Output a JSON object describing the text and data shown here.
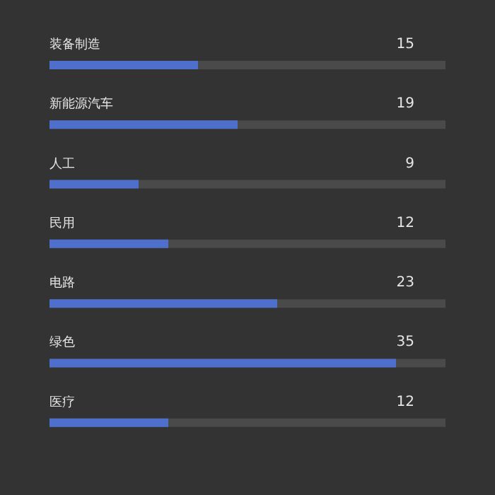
{
  "chart_data": {
    "type": "bar",
    "orientation": "horizontal",
    "categories": [
      "装备制造",
      "新能源汽车",
      "人工",
      "民用",
      "电路",
      "绿色",
      "医疗"
    ],
    "values": [
      15,
      19,
      9,
      12,
      23,
      35,
      12
    ],
    "color": "#4f6fcd",
    "xlim": [
      0,
      40
    ],
    "data_labels": true,
    "grid": false,
    "tick_labels": false
  }
}
